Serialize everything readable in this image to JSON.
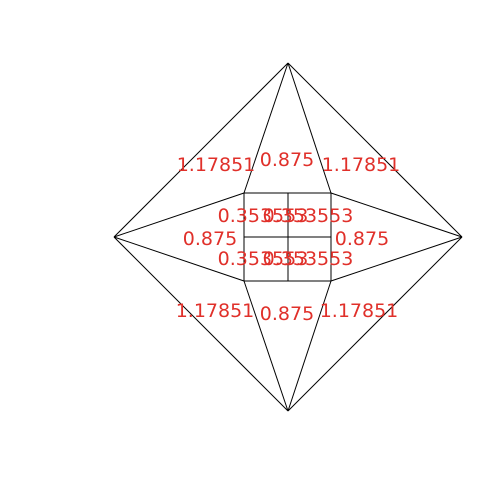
{
  "colors": {
    "background": "#ffffff",
    "edges": "#000000",
    "labels": "#e0302a"
  },
  "labels": {
    "outer_upper_left": "1.17851",
    "outer_upper_right": "1.17851",
    "outer_lower_left": "1.17851",
    "outer_lower_right": "1.17851",
    "top_kite": "0.875",
    "bottom_kite": "0.875",
    "left_kite": "0.875",
    "right_kite": "0.875",
    "center_upper_left": "0.353553",
    "center_upper_right": "0.353553",
    "center_lower_left": "0.353553",
    "center_lower_right": "0.353553"
  }
}
